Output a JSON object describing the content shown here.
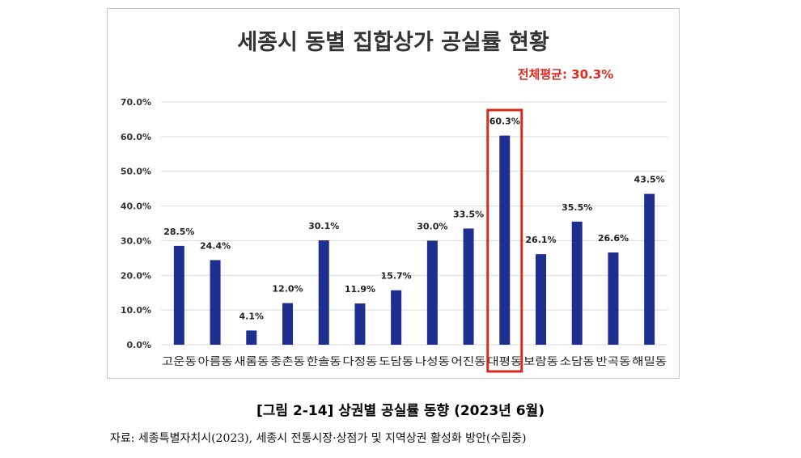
{
  "chart_data": {
    "type": "bar",
    "title": "세종시 동별 집합상가 공실률 현황",
    "annotation": "전체평균: 30.3%",
    "categories": [
      "고운동",
      "아름동",
      "새롬동",
      "종촌동",
      "한솔동",
      "다정동",
      "도담동",
      "나성동",
      "어진동",
      "대평동",
      "보람동",
      "소담동",
      "반곡동",
      "해밀동"
    ],
    "values": [
      28.5,
      24.4,
      4.1,
      12.0,
      30.1,
      11.9,
      15.7,
      30.0,
      33.5,
      60.3,
      26.1,
      35.5,
      26.6,
      43.5
    ],
    "value_labels": [
      "28.5%",
      "24.4%",
      "4.1%",
      "12.0%",
      "30.1%",
      "11.9%",
      "15.7%",
      "30.0%",
      "33.5%",
      "60.3%",
      "26.1%",
      "35.5%",
      "26.6%",
      "43.5%"
    ],
    "yticks": [
      "0.0%",
      "10.0%",
      "20.0%",
      "30.0%",
      "40.0%",
      "50.0%",
      "60.0%",
      "70.0%"
    ],
    "ylim": [
      0,
      70
    ],
    "grid": true,
    "highlight_category": "대평동",
    "colors": {
      "bar": "#1f2f8f",
      "highlight_box": "#d6281e",
      "annotation": "#e0281c",
      "grid": "#d9d9d9"
    }
  },
  "caption": "[그림 2-14] 상권별 공실률 동향 (2023년 6월)",
  "source": "자료: 세종특별자치시(2023), 세종시 전통시장·상점가 및 지역상권 활성화 방안(수립중)"
}
